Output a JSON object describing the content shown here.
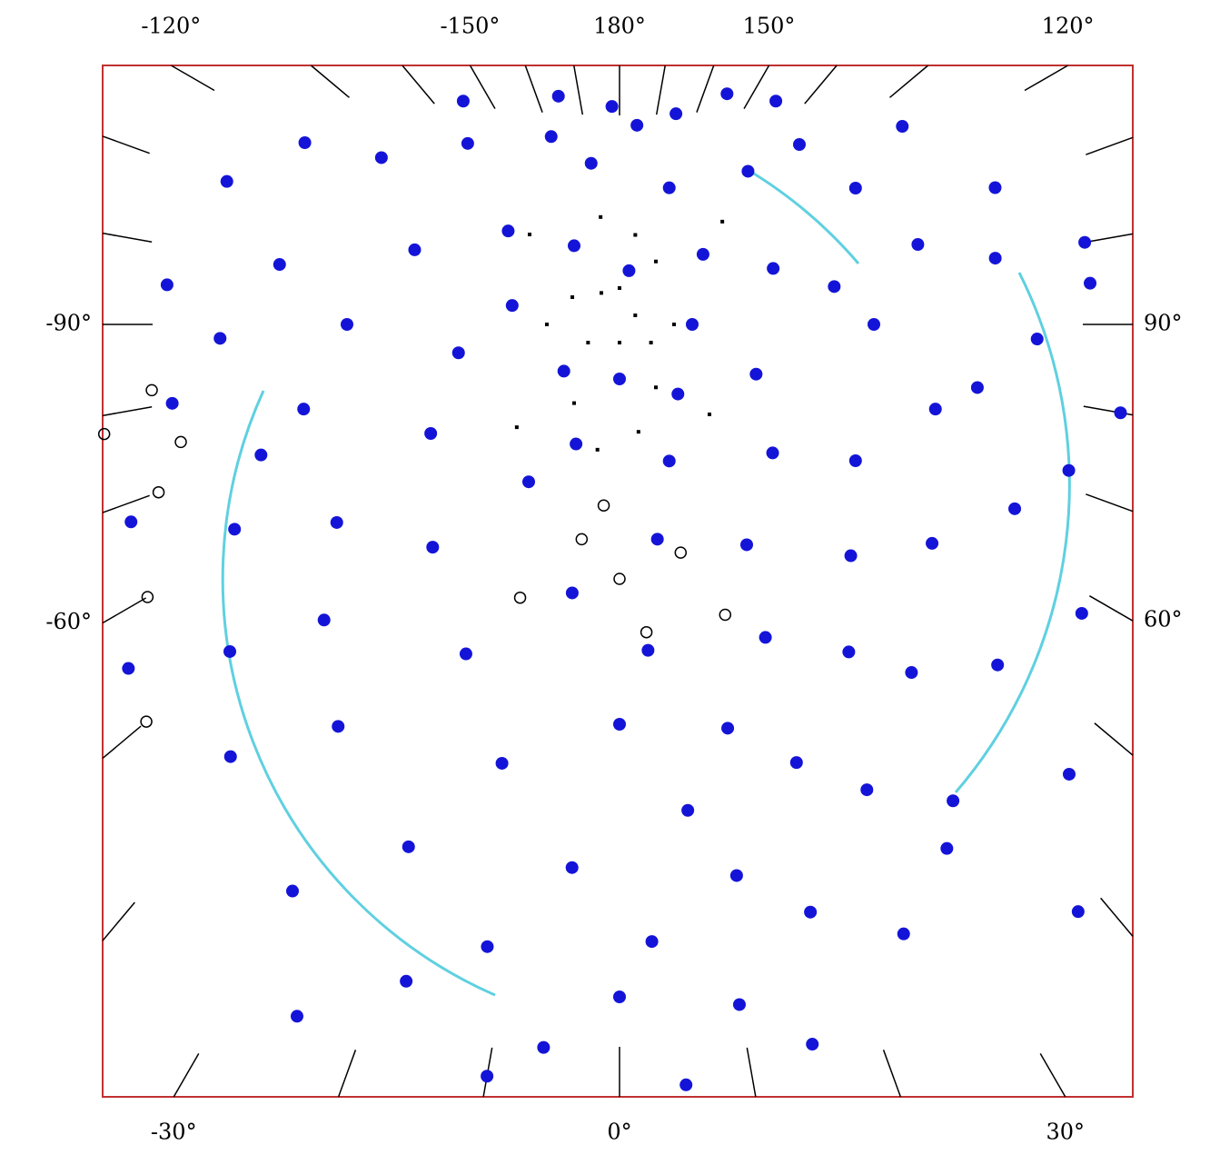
{
  "chart_data": {
    "type": "polar-scatter",
    "rlim": [
      0,
      40
    ],
    "thetaticks": [
      {
        "value": -120,
        "label": "-120°"
      },
      {
        "value": -150,
        "label": "-150°"
      },
      {
        "value": 180,
        "label": "180°"
      },
      {
        "value": 150,
        "label": "150°"
      },
      {
        "value": 120,
        "label": "120°"
      },
      {
        "value": -90,
        "label": "-90°"
      },
      {
        "value": 90,
        "label": "90°"
      },
      {
        "value": -60,
        "label": "-60°"
      },
      {
        "value": 60,
        "label": "60°"
      },
      {
        "value": -30,
        "label": "-30°"
      },
      {
        "value": 0,
        "label": "0°"
      },
      {
        "value": 30,
        "label": "30°"
      }
    ],
    "minor_thetaticks": [
      -170,
      -160,
      -140,
      -130,
      -110,
      -100,
      -80,
      -70,
      -50,
      -40,
      -20,
      -10,
      10,
      20,
      40,
      50,
      70,
      80,
      100,
      110,
      130,
      140,
      160,
      170
    ],
    "series": [
      {
        "color": "#1414d8",
        "marker": "filled-circle",
        "theta": [
          0,
          40,
          90,
          130,
          170,
          -150,
          -100,
          -50,
          20,
          -20,
          70,
          110,
          160,
          -170,
          -130,
          -80,
          -30,
          10,
          50,
          100,
          140,
          -160,
          -110,
          -60,
          -10,
          30,
          60,
          90,
          120,
          -140,
          -90,
          -40,
          5,
          25,
          45,
          75,
          105,
          135,
          -125,
          -75,
          -55,
          -25,
          0,
          15,
          35,
          55,
          80,
          100,
          -100,
          -70,
          -45,
          -15,
          8,
          22,
          40,
          65,
          88,
          -88,
          -62,
          -35,
          -5,
          12,
          28,
          48,
          72,
          -80,
          -50,
          -22,
          3,
          18,
          35,
          58,
          -42,
          -12,
          0,
          10,
          -6,
          25,
          45,
          -30,
          -55,
          -68,
          80,
          95,
          110,
          -110,
          125,
          -120,
          145,
          -145,
          165,
          -165,
          175,
          -178,
          155,
          100,
          -95,
          38,
          -25,
          15,
          -10,
          -18,
          32,
          5
        ],
        "r": [
          3,
          5,
          4,
          6,
          3,
          5,
          6,
          4,
          8,
          7,
          8,
          9,
          8,
          9,
          8,
          9,
          10,
          12,
          11,
          12,
          11,
          11,
          12,
          12,
          15,
          14,
          15,
          14,
          15,
          13,
          15,
          16,
          18,
          19,
          18,
          18,
          17,
          14,
          16,
          18,
          19,
          20,
          22,
          23,
          22,
          21,
          20,
          21,
          19,
          21,
          23,
          25,
          27,
          26,
          25,
          24,
          23,
          22,
          24,
          27,
          30,
          31,
          29,
          28,
          26,
          25,
          28,
          31,
          34,
          34,
          32,
          30,
          32,
          35,
          37,
          38,
          40,
          37,
          35,
          36,
          33,
          29,
          28,
          26,
          22,
          23,
          19,
          20,
          15,
          15,
          12,
          13,
          11,
          12,
          14,
          26,
          25,
          41,
          42,
          41,
          42,
          38,
          34,
          42
        ]
      },
      {
        "color": "#000000",
        "marker": "square",
        "theta": [
          0,
          60,
          120,
          -60,
          180,
          -120,
          30,
          -30,
          90,
          150,
          -150,
          -90,
          10,
          -10,
          45,
          -45,
          170,
          -170,
          135,
          -135
        ],
        "r": [
          1,
          2,
          1,
          2,
          2,
          3,
          4,
          5,
          3,
          4,
          2,
          4,
          6,
          7,
          7,
          8,
          5,
          6,
          8,
          7
        ]
      },
      {
        "color": "#000000",
        "marker": "open-circle",
        "theta": [
          0,
          -10,
          15,
          -20,
          20,
          5,
          -5,
          -75,
          -70,
          -82,
          -60,
          -50,
          -78
        ],
        "r": [
          14,
          12,
          13,
          16,
          17,
          17,
          10,
          25,
          27,
          26,
          30,
          34,
          29
        ]
      }
    ]
  }
}
